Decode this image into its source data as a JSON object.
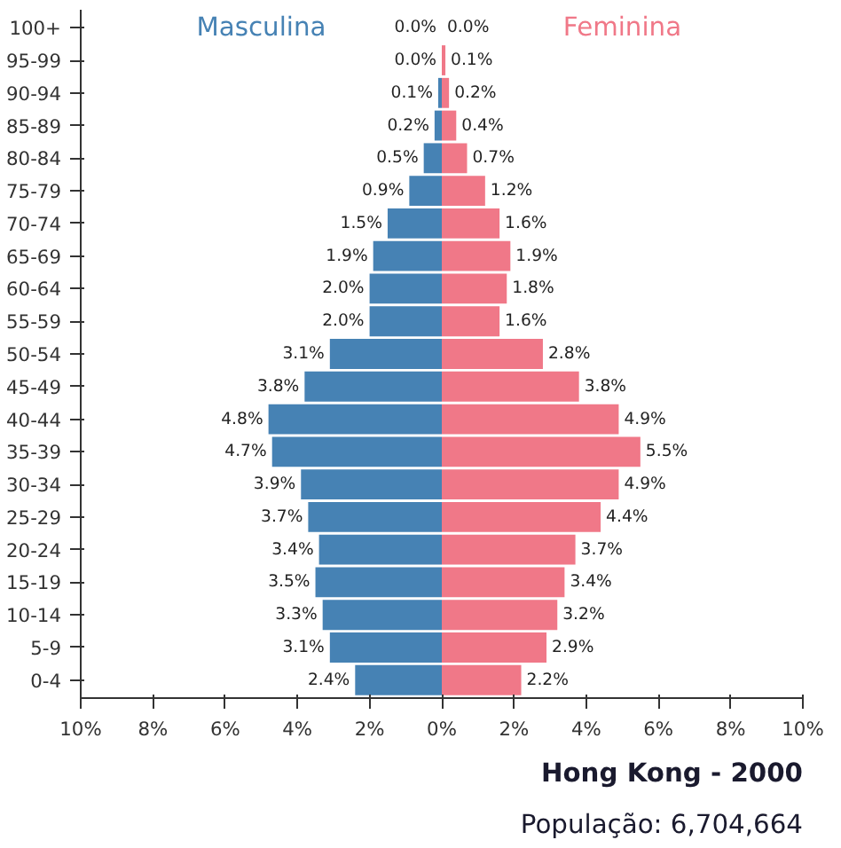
{
  "chart_data": {
    "type": "bar",
    "orientation": "horizontal",
    "title": "Hong Kong - 2000",
    "subtitle": "População: 6,704,664",
    "categories": [
      "100+",
      "95-99",
      "90-94",
      "85-89",
      "80-84",
      "75-79",
      "70-74",
      "65-69",
      "60-64",
      "55-59",
      "50-54",
      "45-49",
      "40-44",
      "35-39",
      "30-34",
      "25-29",
      "20-24",
      "15-19",
      "10-14",
      "5-9",
      "0-4"
    ],
    "series": [
      {
        "name": "Masculina",
        "color": "#4682b4",
        "values": [
          0.0,
          0.0,
          0.1,
          0.2,
          0.5,
          0.9,
          1.5,
          1.9,
          2.0,
          2.0,
          3.1,
          3.8,
          4.8,
          4.7,
          3.9,
          3.7,
          3.4,
          3.5,
          3.3,
          3.1,
          2.4
        ],
        "base": [
          null,
          null,
          -0.1,
          -0.2,
          -0.5,
          -0.9,
          -1.5,
          -1.9,
          -2.0,
          -2.0,
          -3.1,
          -3.8,
          -4.8,
          -4.7,
          -3.9,
          -3.7,
          -3.4,
          -3.5,
          -3.3,
          -3.1,
          -2.4
        ],
        "value_labels": [
          "0.0%",
          "0.0%",
          "0.1%",
          "0.2%",
          "0.5%",
          "0.9%",
          "1.5%",
          "1.9%",
          "2.0%",
          "2.0%",
          "3.1%",
          "3.8%",
          "4.8%",
          "4.7%",
          "3.9%",
          "3.7%",
          "3.4%",
          "3.5%",
          "3.3%",
          "3.1%",
          "2.4%"
        ]
      },
      {
        "name": "Feminina",
        "color": "#f07888",
        "values": [
          0.0,
          0.1,
          0.2,
          0.4,
          0.7,
          1.2,
          1.6,
          1.9,
          1.8,
          1.6,
          2.8,
          3.8,
          4.9,
          5.5,
          4.9,
          4.4,
          3.7,
          3.4,
          3.2,
          2.9,
          2.2
        ],
        "value_labels": [
          "0.0%",
          "0.1%",
          "0.2%",
          "0.4%",
          "0.7%",
          "1.2%",
          "1.6%",
          "1.9%",
          "1.8%",
          "1.6%",
          "2.8%",
          "3.8%",
          "4.9%",
          "5.5%",
          "4.9%",
          "4.4%",
          "3.7%",
          "3.4%",
          "3.2%",
          "2.9%",
          "2.2%"
        ]
      }
    ],
    "xlim": [
      -10,
      10
    ],
    "xticks": [
      {
        "value": -10,
        "label": "10%"
      },
      {
        "value": -8,
        "label": "8%"
      },
      {
        "value": -6,
        "label": "6%"
      },
      {
        "value": -4,
        "label": "4%"
      },
      {
        "value": -2,
        "label": "2%"
      },
      {
        "value": 0,
        "label": "0%"
      },
      {
        "value": 2,
        "label": "2%"
      },
      {
        "value": 4,
        "label": "4%"
      },
      {
        "value": 6,
        "label": "6%"
      },
      {
        "value": 8,
        "label": "8%"
      },
      {
        "value": 10,
        "label": "10%"
      }
    ],
    "grid": false
  }
}
